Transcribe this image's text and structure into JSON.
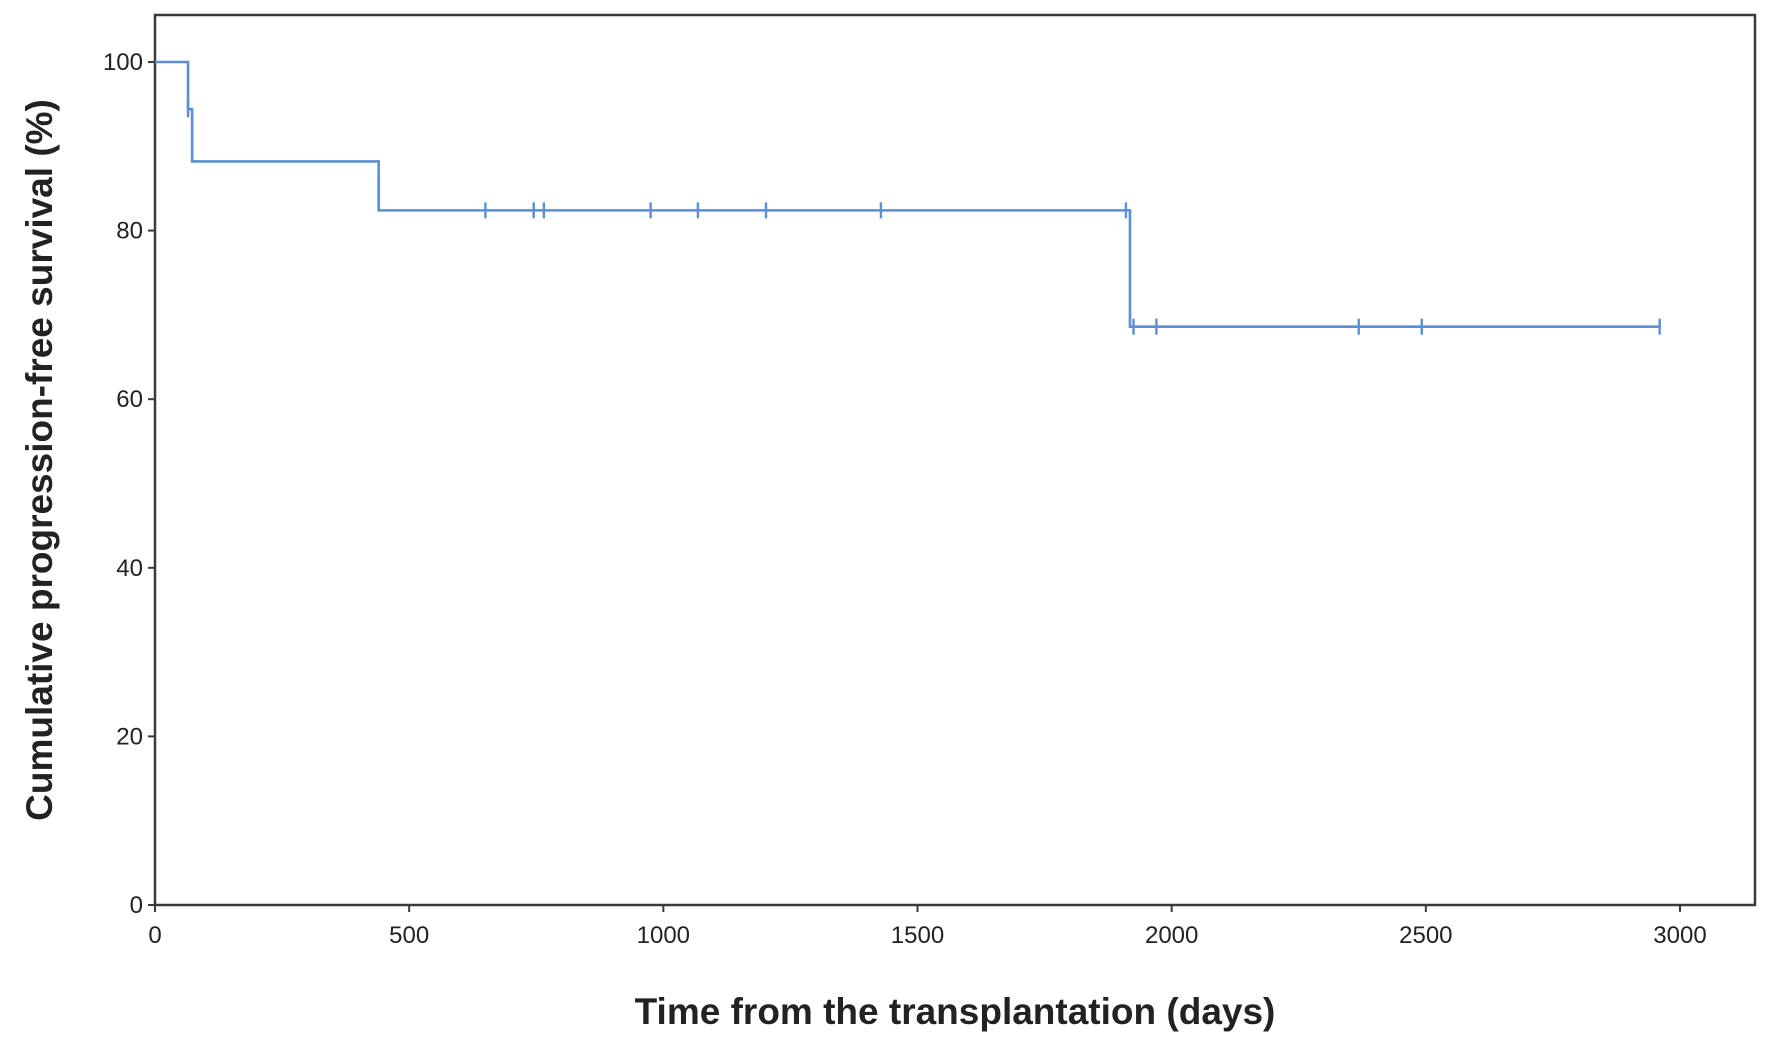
{
  "chart_data": {
    "type": "line",
    "subtype": "kaplan-meier-step",
    "title": "",
    "xlabel": "Time from the transplantation (days)",
    "ylabel": "Cumulative progression-free survival (%)",
    "xlim": [
      0,
      3160
    ],
    "ylim": [
      0,
      106
    ],
    "x_ticks": [
      0,
      500,
      1000,
      1500,
      2000,
      2500,
      3000
    ],
    "y_ticks": [
      0,
      20,
      40,
      60,
      80,
      100
    ],
    "grid": false,
    "legend": "none",
    "series": [
      {
        "color": "#5b8ed6",
        "step_points": [
          {
            "x": 0,
            "y": 100
          },
          {
            "x": 65,
            "y": 94.4
          },
          {
            "x": 73,
            "y": 88.2
          },
          {
            "x": 440,
            "y": 82.4
          },
          {
            "x": 1918,
            "y": 68.6
          }
        ],
        "end_x": 2960,
        "censored": [
          {
            "x": 65,
            "y": 94.4
          },
          {
            "x": 650,
            "y": 82.4
          },
          {
            "x": 745,
            "y": 82.4
          },
          {
            "x": 765,
            "y": 82.4
          },
          {
            "x": 975,
            "y": 82.4
          },
          {
            "x": 1068,
            "y": 82.4
          },
          {
            "x": 1202,
            "y": 82.4
          },
          {
            "x": 1428,
            "y": 82.4
          },
          {
            "x": 1910,
            "y": 82.4
          },
          {
            "x": 1925,
            "y": 68.6
          },
          {
            "x": 1970,
            "y": 68.6
          },
          {
            "x": 2368,
            "y": 68.6
          },
          {
            "x": 2492,
            "y": 68.6
          },
          {
            "x": 2960,
            "y": 68.6
          }
        ]
      }
    ]
  }
}
